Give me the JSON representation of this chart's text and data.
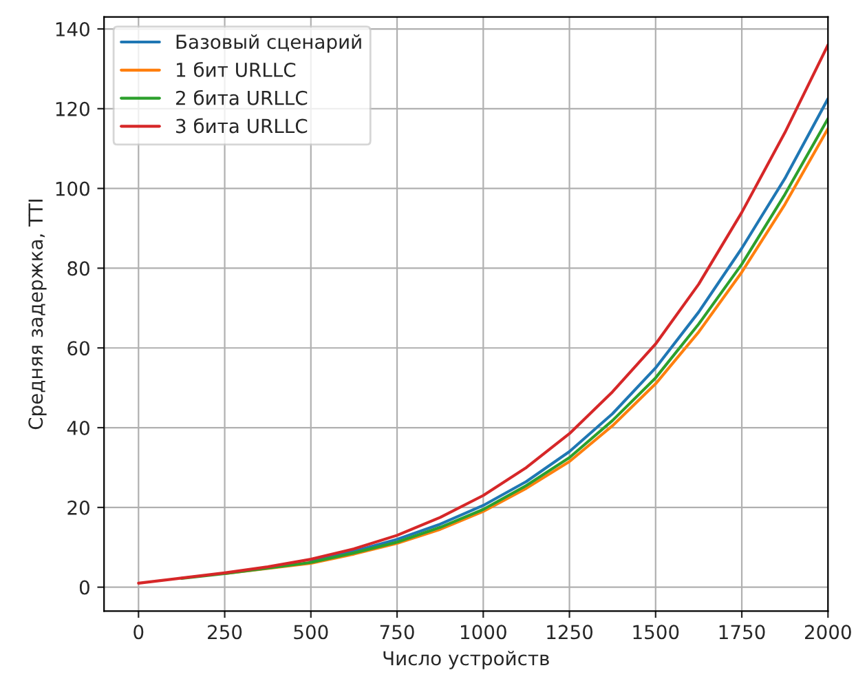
{
  "chart_data": {
    "type": "line",
    "xlabel": "Число устройств",
    "ylabel": "Средняя задержка, TTI",
    "x": [
      0,
      125,
      250,
      375,
      500,
      625,
      750,
      875,
      1000,
      1125,
      1250,
      1375,
      1500,
      1625,
      1750,
      1875,
      2000
    ],
    "series": [
      {
        "name": "Базовый сценарий",
        "color": "#1f77b4",
        "values": [
          null,
          null,
          null,
          null,
          6.5,
          9,
          12,
          15.8,
          20.5,
          26.5,
          34,
          43.5,
          55,
          69,
          85,
          102.5,
          122.5
        ]
      },
      {
        "name": "1 бит URLLC",
        "color": "#ff7f0e",
        "values": [
          null,
          null,
          3.4,
          4.7,
          6,
          8.3,
          11,
          14.5,
          19,
          24.8,
          31.5,
          40.5,
          51,
          64,
          79,
          96,
          115
        ]
      },
      {
        "name": "2 бита URLLC",
        "color": "#2ca02c",
        "values": [
          null,
          2.2,
          3.4,
          4.8,
          6.2,
          8.6,
          11.3,
          15,
          19.5,
          25.5,
          32.5,
          41.8,
          52.5,
          66,
          81,
          98.5,
          117.5
        ]
      },
      {
        "name": "3 бита URLLC",
        "color": "#d62728",
        "values": [
          1,
          2.3,
          3.6,
          5.1,
          7,
          9.6,
          13,
          17.5,
          23,
          30,
          38.5,
          49,
          61,
          76,
          94,
          114,
          136
        ]
      }
    ],
    "xlim": [
      -100,
      2000
    ],
    "xticks": [
      0,
      250,
      500,
      750,
      1000,
      1250,
      1500,
      1750,
      2000
    ],
    "ylim": [
      -6,
      143
    ],
    "yticks": [
      0,
      20,
      40,
      60,
      80,
      100,
      120,
      140
    ],
    "grid": true,
    "legend": "top left"
  }
}
